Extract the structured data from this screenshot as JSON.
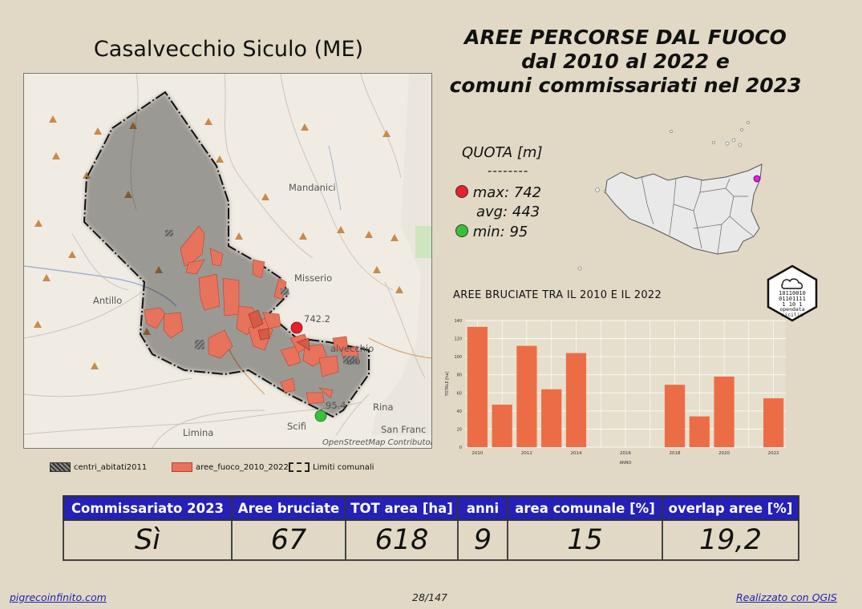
{
  "map": {
    "title": "Casalvecchio Siculo (ME)",
    "labels": [
      {
        "text": "Mandanici"
      },
      {
        "text": "Misserio"
      },
      {
        "text": "Antillo"
      },
      {
        "text": "Rina"
      },
      {
        "text": "San Franc"
      },
      {
        "text": "Limina"
      },
      {
        "text": "Scifì"
      },
      {
        "text": "alvecchio"
      },
      {
        "text": "ulo"
      }
    ],
    "elevation_markers": {
      "max_label": "742.2",
      "min_label": "95.4"
    },
    "attribution": "OpenStreetMap Contributor"
  },
  "main_title": {
    "line1": "AREE PERCORSE DAL FUOCO",
    "line2": "dal 2010 al 2022 e",
    "line3": "comuni commissariati nel 2023"
  },
  "quota": {
    "title": "QUOTA [m]",
    "separator": "--------",
    "max": "max: 742",
    "avg": "avg: 443",
    "min": "min: 95",
    "colors": {
      "max": "#e8202a",
      "min": "#37c13a"
    }
  },
  "legend": {
    "centri": "centri_abitati2011",
    "aree": "aree_fuoco_2010_2022",
    "limiti": "Limiti comunali"
  },
  "logo": {
    "lines": [
      "10110010",
      "01101111",
      "1  10 1",
      "opendata",
      "sicilia"
    ]
  },
  "chart_data": {
    "type": "bar",
    "title": "AREE BRUCIATE TRA IL 2010 E IL 2022",
    "xlabel": "ANNO",
    "ylabel": "TOTALE [ha]",
    "categories": [
      2010,
      2011,
      2012,
      2013,
      2014,
      2015,
      2016,
      2017,
      2018,
      2019,
      2020,
      2021,
      2022
    ],
    "values": [
      133,
      47,
      112,
      64,
      104,
      0,
      0,
      0,
      69,
      34,
      78,
      0,
      54
    ],
    "x_ticks": [
      "2010",
      "2012",
      "2014",
      "2016",
      "2018",
      "2020",
      "2022"
    ],
    "y_ticks": [
      "0",
      "20",
      "40",
      "60",
      "80",
      "100",
      "120",
      "140"
    ],
    "ylim": [
      0,
      140
    ],
    "grid": true,
    "color": "#ec6d45"
  },
  "stats_table": {
    "headers": [
      "Commissariato 2023",
      "Aree bruciate",
      "TOT area [ha]",
      "anni",
      "area comunale [%]",
      "overlap aree [%]"
    ],
    "values": [
      "Sì",
      "67",
      "618",
      "9",
      "15",
      "19,2"
    ]
  },
  "footer": {
    "left": "pigrecoinfinito.com",
    "center": "28/147",
    "right": "Realizzato con QGIS"
  },
  "colors": {
    "background": "#e1d9c5",
    "fire": "#e8735d",
    "header": "#2420b8",
    "highlight_dot": "#e020e0"
  }
}
